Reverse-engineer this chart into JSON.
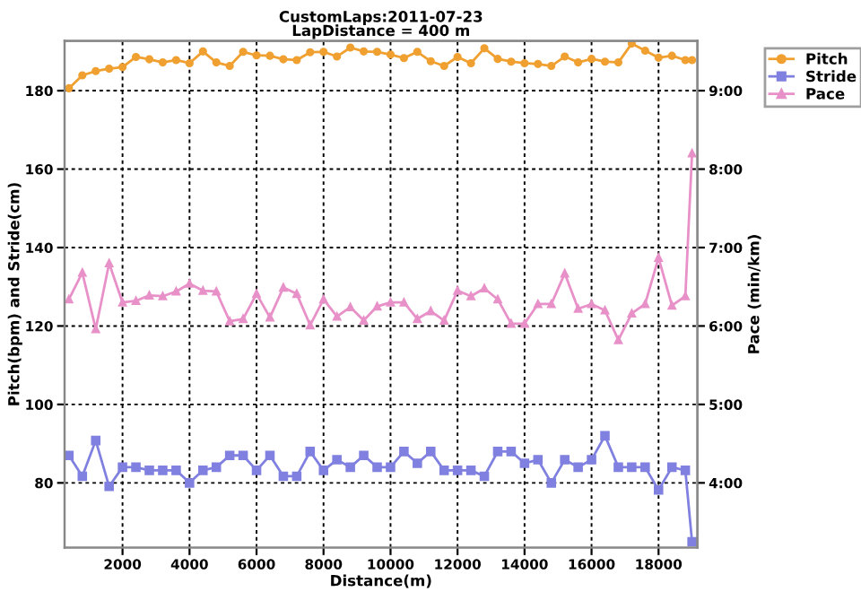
{
  "chart_data": {
    "type": "line",
    "title": "CustomLaps:2011-07-23\nLapDistance = 400 m",
    "xlabel": "Distance(m)",
    "ylabel": "Pitch(bpm) and Stride(cm)",
    "y2label": "Pace (min/km)",
    "x": [
      400,
      800,
      1200,
      1600,
      2000,
      2400,
      2800,
      3200,
      3600,
      4000,
      4400,
      4800,
      5200,
      5600,
      6000,
      6400,
      6800,
      7200,
      7600,
      8000,
      8400,
      8800,
      9200,
      9600,
      10000,
      10400,
      10800,
      11200,
      11600,
      12000,
      12400,
      12800,
      13200,
      13600,
      14000,
      14400,
      14800,
      15200,
      15600,
      16000,
      16400,
      16800,
      17200,
      17600,
      18000,
      18400,
      18800,
      19000
    ],
    "series": [
      {
        "name": "Pitch",
        "color": "#f0a030",
        "marker": "circle",
        "values": [
          180.6,
          183.9,
          185,
          185.6,
          186,
          188.6,
          188,
          187.2,
          187.8,
          187,
          190,
          187.2,
          186.3,
          189.9,
          189,
          188.9,
          188,
          187.8,
          189.8,
          189.9,
          188.7,
          191,
          190,
          189.9,
          189.2,
          188.3,
          189.9,
          187.5,
          186.3,
          188.6,
          187,
          190.8,
          188.1,
          187.4,
          187,
          186.8,
          186.3,
          188.7,
          187.2,
          188.1,
          187.4,
          187.2,
          192,
          190.2,
          188.4,
          188.9,
          187.8,
          187.8
        ]
      },
      {
        "name": "Stride",
        "color": "#8080e0",
        "marker": "square",
        "values": [
          87,
          81.7,
          90.8,
          79.1,
          84,
          84,
          83.2,
          83.2,
          83.2,
          80,
          83.2,
          84,
          87,
          87,
          83.2,
          87,
          81.7,
          81.7,
          88,
          83.2,
          85.9,
          84,
          87,
          84,
          84,
          88,
          85,
          88,
          83.2,
          83.2,
          83.2,
          81.7,
          88,
          88,
          85,
          85.9,
          80,
          85.9,
          84,
          85.9,
          92,
          84,
          84,
          84,
          78.2,
          84,
          83.2,
          65
        ]
      },
      {
        "name": "Pace",
        "color": "#e890c8",
        "marker": "triangle",
        "axis": "y2",
        "values": [
          6.34,
          6.68,
          5.96,
          6.8,
          6.3,
          6.32,
          6.39,
          6.38,
          6.44,
          6.54,
          6.45,
          6.44,
          6.06,
          6.09,
          6.41,
          6.11,
          6.49,
          6.41,
          6.01,
          6.34,
          6.12,
          6.24,
          6.07,
          6.25,
          6.3,
          6.3,
          6.09,
          6.19,
          6.07,
          6.45,
          6.38,
          6.48,
          6.34,
          6.03,
          6.03,
          6.28,
          6.28,
          6.67,
          6.22,
          6.28,
          6.2,
          5.82,
          6.16,
          6.28,
          6.87,
          6.26,
          6.38,
          8.2
        ]
      }
    ],
    "xlim": [
      270,
      19160
    ],
    "xticks": [
      2000,
      4000,
      6000,
      8000,
      10000,
      12000,
      14000,
      16000,
      18000
    ],
    "ylim": [
      63.5,
      192.7
    ],
    "yticks": [
      80,
      100,
      120,
      140,
      160,
      180
    ],
    "y2lim": [
      3.175,
      9.635
    ],
    "y2ticks": [
      {
        "value": 4,
        "label": "4:00"
      },
      {
        "value": 5,
        "label": "5:00"
      },
      {
        "value": 6,
        "label": "6:00"
      },
      {
        "value": 7,
        "label": "7:00"
      },
      {
        "value": 8,
        "label": "8:00"
      },
      {
        "value": 9,
        "label": "9:00"
      }
    ],
    "grid": true,
    "legend": "top right",
    "line_style": "solid"
  }
}
